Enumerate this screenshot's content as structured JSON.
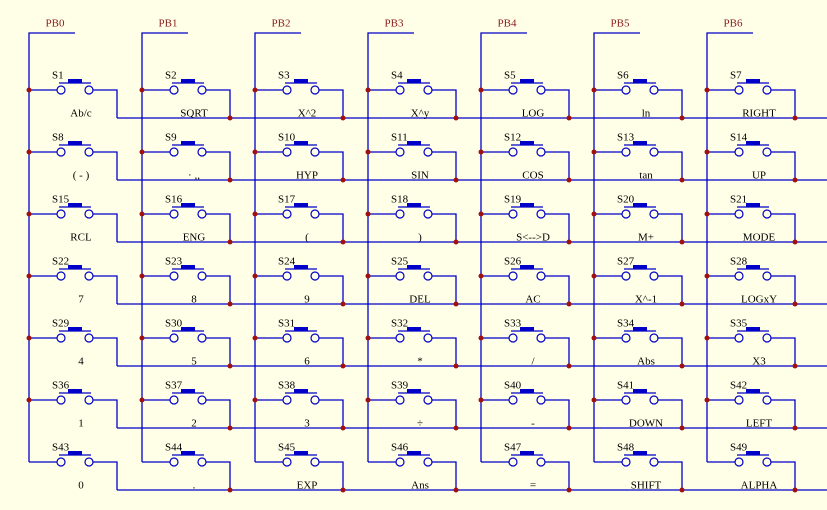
{
  "columns": [
    "PB0",
    "PB1",
    "PB2",
    "PB3",
    "PB4",
    "PB5",
    "PB6"
  ],
  "rows": [
    [
      {
        "name": "S1",
        "key": "Ab/c"
      },
      {
        "name": "S2",
        "key": "SQRT"
      },
      {
        "name": "S3",
        "key": "X^2"
      },
      {
        "name": "S4",
        "key": "X^y"
      },
      {
        "name": "S5",
        "key": "LOG"
      },
      {
        "name": "S6",
        "key": "ln"
      },
      {
        "name": "S7",
        "key": "RIGHT"
      }
    ],
    [
      {
        "name": "S8",
        "key": "( - )"
      },
      {
        "name": "S9",
        "key": "· ,,"
      },
      {
        "name": "S10",
        "key": "HYP"
      },
      {
        "name": "S11",
        "key": "SIN"
      },
      {
        "name": "S12",
        "key": "COS"
      },
      {
        "name": "S13",
        "key": "tan"
      },
      {
        "name": "S14",
        "key": "UP"
      }
    ],
    [
      {
        "name": "S15",
        "key": "RCL"
      },
      {
        "name": "S16",
        "key": "ENG"
      },
      {
        "name": "S17",
        "key": "("
      },
      {
        "name": "S18",
        "key": ")"
      },
      {
        "name": "S19",
        "key": "S<-->D"
      },
      {
        "name": "S20",
        "key": "M+"
      },
      {
        "name": "S21",
        "key": "MODE"
      }
    ],
    [
      {
        "name": "S22",
        "key": "7"
      },
      {
        "name": "S23",
        "key": "8"
      },
      {
        "name": "S24",
        "key": "9"
      },
      {
        "name": "S25",
        "key": "DEL"
      },
      {
        "name": "S26",
        "key": "AC"
      },
      {
        "name": "S27",
        "key": "X^-1"
      },
      {
        "name": "S28",
        "key": "LOGxY"
      }
    ],
    [
      {
        "name": "S29",
        "key": "4"
      },
      {
        "name": "S30",
        "key": "5"
      },
      {
        "name": "S31",
        "key": "6"
      },
      {
        "name": "S32",
        "key": "*"
      },
      {
        "name": "S33",
        "key": "/"
      },
      {
        "name": "S34",
        "key": "Abs"
      },
      {
        "name": "S35",
        "key": "X3"
      }
    ],
    [
      {
        "name": "S36",
        "key": "1"
      },
      {
        "name": "S37",
        "key": "2"
      },
      {
        "name": "S38",
        "key": "3"
      },
      {
        "name": "S39",
        "key": "÷"
      },
      {
        "name": "S40",
        "key": "-"
      },
      {
        "name": "S41",
        "key": "DOWN"
      },
      {
        "name": "S42",
        "key": "LEFT"
      }
    ],
    [
      {
        "name": "S43",
        "key": "0"
      },
      {
        "name": "S44",
        "key": "."
      },
      {
        "name": "S45",
        "key": "EXP"
      },
      {
        "name": "S46",
        "key": "Ans"
      },
      {
        "name": "S47",
        "key": "="
      },
      {
        "name": "S48",
        "key": "SHIFT"
      },
      {
        "name": "S49",
        "key": "ALPHA"
      }
    ]
  ]
}
